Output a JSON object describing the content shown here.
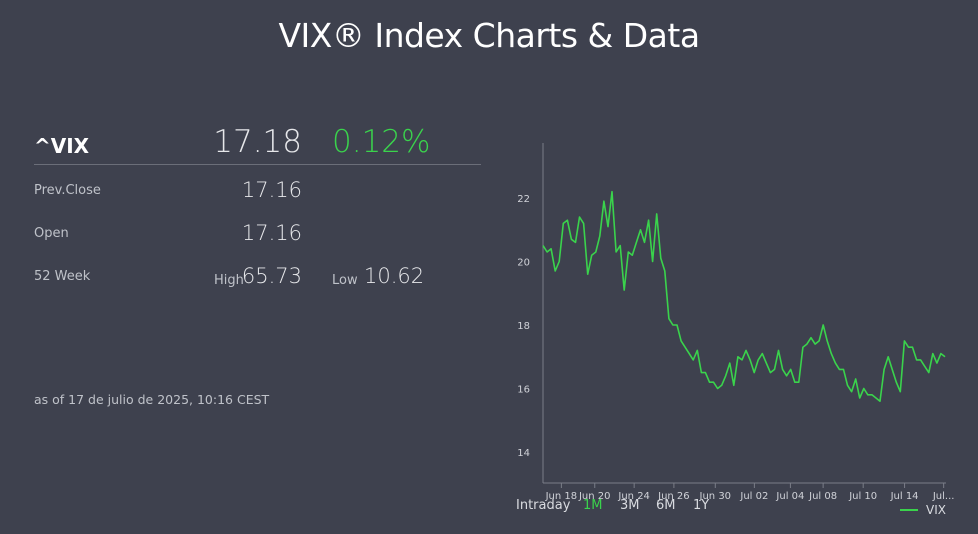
{
  "title": "VIX® Index Charts & Data",
  "quote": {
    "symbol": "^VIX",
    "last": "17.18",
    "change_pct": "0.12%",
    "prev_close_label": "Prev.Close",
    "prev_close": "17.16",
    "open_label": "Open",
    "open": "17.16",
    "week52_label": "52 Week",
    "high_label": "High",
    "high": "65.73",
    "low_label": "Low",
    "low": "10.62",
    "as_of": "as of 17 de julio de 2025, 10:16 CEST"
  },
  "ranges": [
    "Intraday",
    "1M",
    "3M",
    "6M",
    "1Y"
  ],
  "active_range": "1M",
  "colors": {
    "accent": "#3ad34c",
    "background": "#3e414e"
  },
  "chart_data": {
    "type": "line",
    "title": "",
    "xlabel": "",
    "ylabel": "",
    "ylim": [
      14,
      23.5
    ],
    "yticks": [
      "14",
      "16",
      "18",
      "20",
      "22"
    ],
    "xticks": [
      "Jun 18",
      "Jun 20",
      "Jun 24",
      "Jun 26",
      "Jun 30",
      "Jul 02",
      "Jul 04",
      "Jul 08",
      "Jul 10",
      "Jul 14",
      "Jul..."
    ],
    "grid": false,
    "legend": "bottom-right",
    "series": [
      {
        "name": "VIX",
        "color": "#3ad34c",
        "values": [
          20.5,
          20.3,
          20.4,
          19.7,
          20.0,
          21.2,
          21.3,
          20.7,
          20.6,
          21.4,
          21.2,
          19.6,
          20.2,
          20.3,
          20.8,
          21.9,
          21.1,
          22.2,
          20.3,
          20.5,
          19.1,
          20.3,
          20.2,
          20.6,
          21.0,
          20.6,
          21.3,
          20.0,
          21.5,
          20.1,
          19.7,
          18.2,
          18.0,
          18.0,
          17.5,
          17.3,
          17.1,
          16.9,
          17.2,
          16.5,
          16.5,
          16.2,
          16.2,
          16.0,
          16.1,
          16.4,
          16.8,
          16.1,
          17.0,
          16.9,
          17.2,
          16.9,
          16.5,
          16.9,
          17.1,
          16.8,
          16.5,
          16.6,
          17.2,
          16.6,
          16.4,
          16.6,
          16.2,
          16.2,
          17.3,
          17.4,
          17.6,
          17.4,
          17.5,
          18.0,
          17.5,
          17.1,
          16.8,
          16.6,
          16.6,
          16.1,
          15.9,
          16.3,
          15.7,
          16.0,
          15.8,
          15.8,
          15.7,
          15.6,
          16.6,
          17.0,
          16.6,
          16.2,
          15.9,
          17.5,
          17.3,
          17.3,
          16.9,
          16.9,
          16.7,
          16.5,
          17.1,
          16.8,
          17.1,
          17.0
        ]
      }
    ]
  }
}
